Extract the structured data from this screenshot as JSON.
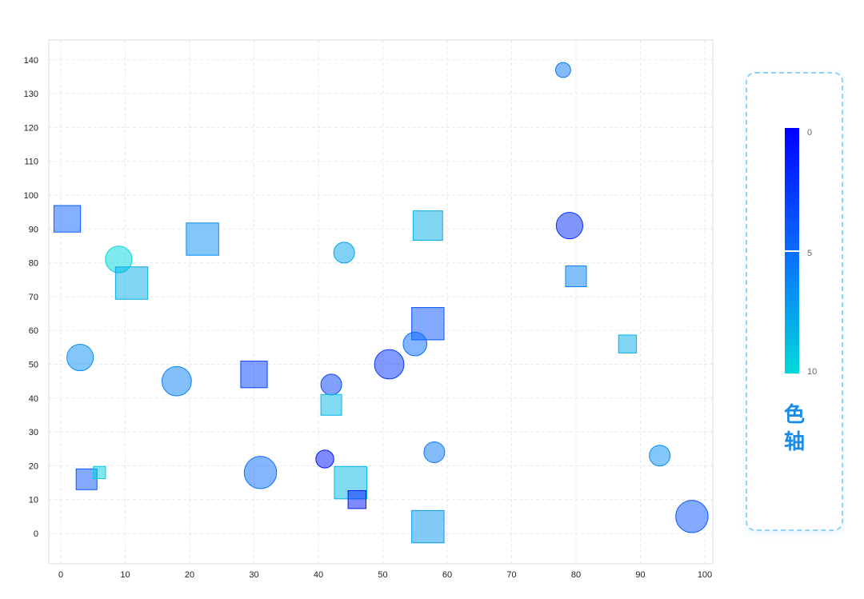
{
  "chart_data": {
    "type": "scatter",
    "title": "",
    "xlabel": "",
    "ylabel": "",
    "xlim": [
      -2,
      102
    ],
    "ylim": [
      -9,
      146
    ],
    "x_ticks": [
      0,
      10,
      20,
      30,
      40,
      50,
      60,
      70,
      80,
      90,
      100
    ],
    "y_ticks": [
      0,
      10,
      20,
      30,
      40,
      50,
      60,
      70,
      80,
      90,
      100,
      110,
      120,
      130,
      140
    ],
    "grid": true,
    "points": [
      {
        "x": 78,
        "y": 137,
        "shape": "circle",
        "size": 3,
        "color_value": 5.5
      },
      {
        "x": 1,
        "y": 93,
        "shape": "square",
        "size": 7,
        "color_value": 4.5
      },
      {
        "x": 22,
        "y": 87,
        "shape": "square",
        "size": 9,
        "color_value": 6.5
      },
      {
        "x": 57,
        "y": 91,
        "shape": "square",
        "size": 8,
        "color_value": 8
      },
      {
        "x": 79,
        "y": 91,
        "shape": "circle",
        "size": 7,
        "color_value": 2
      },
      {
        "x": 9,
        "y": 81,
        "shape": "circle",
        "size": 7,
        "color_value": 9.8
      },
      {
        "x": 44,
        "y": 83,
        "shape": "circle",
        "size": 5,
        "color_value": 7.5
      },
      {
        "x": 11,
        "y": 74,
        "shape": "square",
        "size": 9,
        "color_value": 8
      },
      {
        "x": 80,
        "y": 76,
        "shape": "square",
        "size": 5,
        "color_value": 6
      },
      {
        "x": 57,
        "y": 62,
        "shape": "square",
        "size": 9,
        "color_value": 4
      },
      {
        "x": 55,
        "y": 56,
        "shape": "circle",
        "size": 6,
        "color_value": 5
      },
      {
        "x": 88,
        "y": 56,
        "shape": "square",
        "size": 4,
        "color_value": 8
      },
      {
        "x": 3,
        "y": 52,
        "shape": "circle",
        "size": 7,
        "color_value": 6.5
      },
      {
        "x": 51,
        "y": 50,
        "shape": "circle",
        "size": 8,
        "color_value": 2.5
      },
      {
        "x": 18,
        "y": 45,
        "shape": "circle",
        "size": 8,
        "color_value": 6
      },
      {
        "x": 30,
        "y": 47,
        "shape": "square",
        "size": 7,
        "color_value": 3
      },
      {
        "x": 42,
        "y": 44,
        "shape": "circle",
        "size": 5,
        "color_value": 3
      },
      {
        "x": 42,
        "y": 38,
        "shape": "square",
        "size": 5,
        "color_value": 8.5
      },
      {
        "x": 58,
        "y": 24,
        "shape": "circle",
        "size": 5,
        "color_value": 5.5
      },
      {
        "x": 93,
        "y": 23,
        "shape": "circle",
        "size": 5,
        "color_value": 6.5
      },
      {
        "x": 41,
        "y": 22,
        "shape": "circle",
        "size": 4,
        "color_value": 1
      },
      {
        "x": 31,
        "y": 18,
        "shape": "circle",
        "size": 9,
        "color_value": 5
      },
      {
        "x": 4,
        "y": 16,
        "shape": "square",
        "size": 5,
        "color_value": 4
      },
      {
        "x": 6,
        "y": 18,
        "shape": "square",
        "size": 2,
        "color_value": 9.5
      },
      {
        "x": 45,
        "y": 15,
        "shape": "square",
        "size": 9,
        "color_value": 8.5
      },
      {
        "x": 46,
        "y": 10,
        "shape": "square",
        "size": 4,
        "color_value": 1
      },
      {
        "x": 57,
        "y": 2,
        "shape": "square",
        "size": 9,
        "color_value": 7
      },
      {
        "x": 98,
        "y": 5,
        "shape": "circle",
        "size": 9,
        "color_value": 4
      }
    ],
    "color_axis": {
      "title": "色轴",
      "min": 0,
      "max": 10,
      "ticks": [
        0,
        5,
        10
      ],
      "min_color": "#0000ff",
      "mid_color": "#0a6cff",
      "max_color": "#00dada",
      "placement": "right"
    }
  },
  "legend": {
    "title_line1": "色",
    "title_line2": "轴",
    "tick_top": "0",
    "tick_mid": "5",
    "tick_bottom": "10"
  }
}
